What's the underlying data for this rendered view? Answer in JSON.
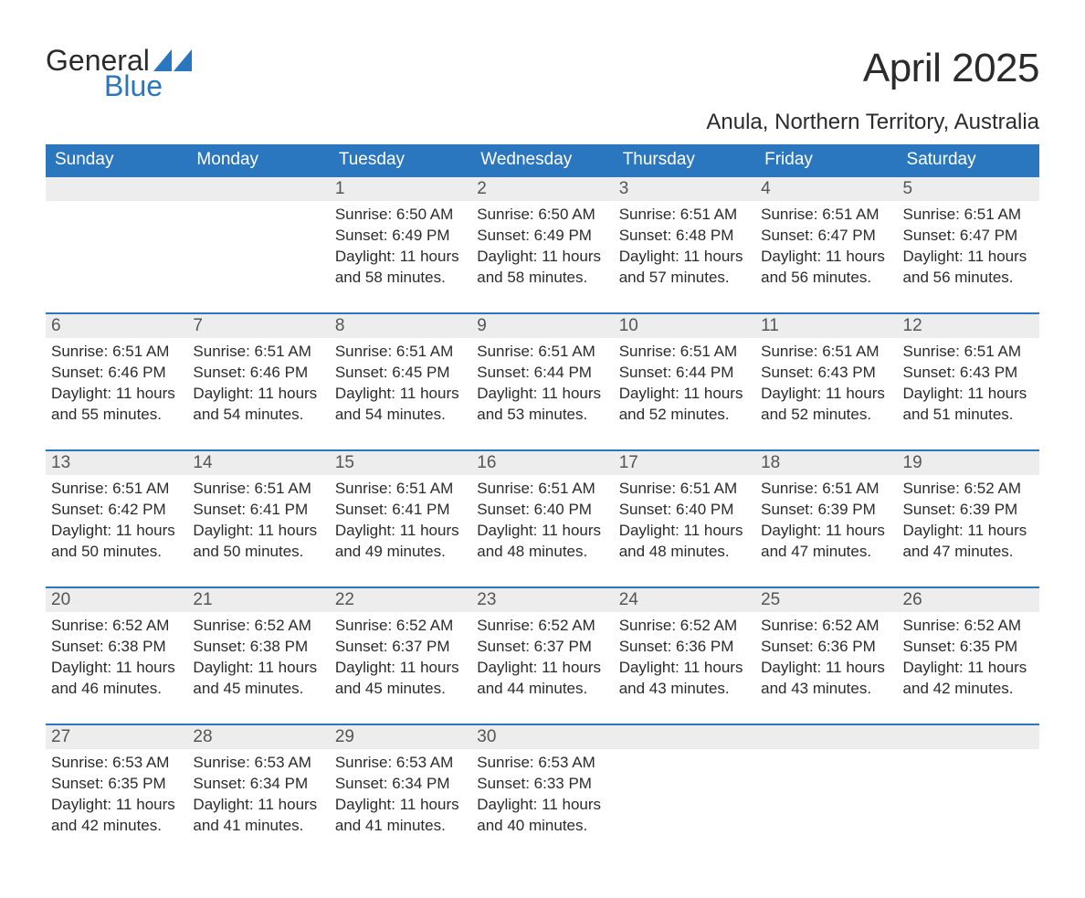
{
  "logo": {
    "word1": "General",
    "word2": "Blue",
    "word1_color": "#2b2b2b",
    "word2_color": "#2a76bf",
    "icon_color": "#2a76bf"
  },
  "title": "April 2025",
  "location": "Anula, Northern Territory, Australia",
  "calendar": {
    "header_bg": "#2a76bf",
    "header_fg": "#ffffff",
    "row_border_color": "#2a76bf",
    "daynum_bg": "#ededed",
    "daynum_fg": "#555555",
    "days": [
      "Sunday",
      "Monday",
      "Tuesday",
      "Wednesday",
      "Thursday",
      "Friday",
      "Saturday"
    ],
    "weeks": [
      [
        null,
        null,
        {
          "n": "1",
          "sunrise": "6:50 AM",
          "sunset": "6:49 PM",
          "daylight": "11 hours and 58 minutes."
        },
        {
          "n": "2",
          "sunrise": "6:50 AM",
          "sunset": "6:49 PM",
          "daylight": "11 hours and 58 minutes."
        },
        {
          "n": "3",
          "sunrise": "6:51 AM",
          "sunset": "6:48 PM",
          "daylight": "11 hours and 57 minutes."
        },
        {
          "n": "4",
          "sunrise": "6:51 AM",
          "sunset": "6:47 PM",
          "daylight": "11 hours and 56 minutes."
        },
        {
          "n": "5",
          "sunrise": "6:51 AM",
          "sunset": "6:47 PM",
          "daylight": "11 hours and 56 minutes."
        }
      ],
      [
        {
          "n": "6",
          "sunrise": "6:51 AM",
          "sunset": "6:46 PM",
          "daylight": "11 hours and 55 minutes."
        },
        {
          "n": "7",
          "sunrise": "6:51 AM",
          "sunset": "6:46 PM",
          "daylight": "11 hours and 54 minutes."
        },
        {
          "n": "8",
          "sunrise": "6:51 AM",
          "sunset": "6:45 PM",
          "daylight": "11 hours and 54 minutes."
        },
        {
          "n": "9",
          "sunrise": "6:51 AM",
          "sunset": "6:44 PM",
          "daylight": "11 hours and 53 minutes."
        },
        {
          "n": "10",
          "sunrise": "6:51 AM",
          "sunset": "6:44 PM",
          "daylight": "11 hours and 52 minutes."
        },
        {
          "n": "11",
          "sunrise": "6:51 AM",
          "sunset": "6:43 PM",
          "daylight": "11 hours and 52 minutes."
        },
        {
          "n": "12",
          "sunrise": "6:51 AM",
          "sunset": "6:43 PM",
          "daylight": "11 hours and 51 minutes."
        }
      ],
      [
        {
          "n": "13",
          "sunrise": "6:51 AM",
          "sunset": "6:42 PM",
          "daylight": "11 hours and 50 minutes."
        },
        {
          "n": "14",
          "sunrise": "6:51 AM",
          "sunset": "6:41 PM",
          "daylight": "11 hours and 50 minutes."
        },
        {
          "n": "15",
          "sunrise": "6:51 AM",
          "sunset": "6:41 PM",
          "daylight": "11 hours and 49 minutes."
        },
        {
          "n": "16",
          "sunrise": "6:51 AM",
          "sunset": "6:40 PM",
          "daylight": "11 hours and 48 minutes."
        },
        {
          "n": "17",
          "sunrise": "6:51 AM",
          "sunset": "6:40 PM",
          "daylight": "11 hours and 48 minutes."
        },
        {
          "n": "18",
          "sunrise": "6:51 AM",
          "sunset": "6:39 PM",
          "daylight": "11 hours and 47 minutes."
        },
        {
          "n": "19",
          "sunrise": "6:52 AM",
          "sunset": "6:39 PM",
          "daylight": "11 hours and 47 minutes."
        }
      ],
      [
        {
          "n": "20",
          "sunrise": "6:52 AM",
          "sunset": "6:38 PM",
          "daylight": "11 hours and 46 minutes."
        },
        {
          "n": "21",
          "sunrise": "6:52 AM",
          "sunset": "6:38 PM",
          "daylight": "11 hours and 45 minutes."
        },
        {
          "n": "22",
          "sunrise": "6:52 AM",
          "sunset": "6:37 PM",
          "daylight": "11 hours and 45 minutes."
        },
        {
          "n": "23",
          "sunrise": "6:52 AM",
          "sunset": "6:37 PM",
          "daylight": "11 hours and 44 minutes."
        },
        {
          "n": "24",
          "sunrise": "6:52 AM",
          "sunset": "6:36 PM",
          "daylight": "11 hours and 43 minutes."
        },
        {
          "n": "25",
          "sunrise": "6:52 AM",
          "sunset": "6:36 PM",
          "daylight": "11 hours and 43 minutes."
        },
        {
          "n": "26",
          "sunrise": "6:52 AM",
          "sunset": "6:35 PM",
          "daylight": "11 hours and 42 minutes."
        }
      ],
      [
        {
          "n": "27",
          "sunrise": "6:53 AM",
          "sunset": "6:35 PM",
          "daylight": "11 hours and 42 minutes."
        },
        {
          "n": "28",
          "sunrise": "6:53 AM",
          "sunset": "6:34 PM",
          "daylight": "11 hours and 41 minutes."
        },
        {
          "n": "29",
          "sunrise": "6:53 AM",
          "sunset": "6:34 PM",
          "daylight": "11 hours and 41 minutes."
        },
        {
          "n": "30",
          "sunrise": "6:53 AM",
          "sunset": "6:33 PM",
          "daylight": "11 hours and 40 minutes."
        },
        null,
        null,
        null
      ]
    ]
  },
  "labels": {
    "sunrise_prefix": "Sunrise: ",
    "sunset_prefix": "Sunset: ",
    "daylight_prefix": "Daylight: "
  },
  "typography": {
    "title_fontsize": 44,
    "location_fontsize": 24,
    "header_fontsize": 19,
    "daynum_fontsize": 19,
    "body_fontsize": 17
  },
  "colors": {
    "background": "#ffffff",
    "text": "#2b2b2b",
    "accent": "#2a76bf"
  }
}
